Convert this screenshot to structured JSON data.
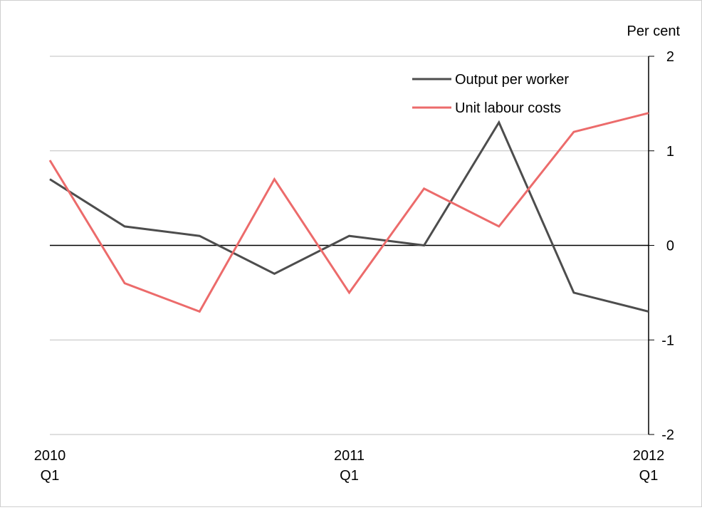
{
  "chart_data": {
    "type": "line",
    "unit_label": "Per cent",
    "x": [
      "2010 Q1",
      "2010 Q2",
      "2010 Q3",
      "2010 Q4",
      "2011 Q1",
      "2011 Q2",
      "2011 Q3",
      "2011 Q4",
      "2012 Q1"
    ],
    "x_tick_labels": [
      {
        "index": 0,
        "year": "2010",
        "quarter": "Q1"
      },
      {
        "index": 4,
        "year": "2011",
        "quarter": "Q1"
      },
      {
        "index": 8,
        "year": "2012",
        "quarter": "Q1"
      }
    ],
    "y_ticks": [
      "2",
      "1",
      "0",
      "-1",
      "-2"
    ],
    "ylim": [
      -2,
      2
    ],
    "y_axis_side": "right",
    "grid": true,
    "legend_position": "top-right",
    "series": [
      {
        "name": "Output per worker",
        "color": "#4d4d4d",
        "values": [
          0.7,
          0.2,
          0.1,
          -0.3,
          0.1,
          0.0,
          1.3,
          -0.5,
          -0.7
        ]
      },
      {
        "name": "Unit labour costs",
        "color": "#ec6b6b",
        "values": [
          0.9,
          -0.4,
          -0.7,
          0.7,
          -0.5,
          0.6,
          0.2,
          1.2,
          1.4
        ]
      }
    ]
  }
}
